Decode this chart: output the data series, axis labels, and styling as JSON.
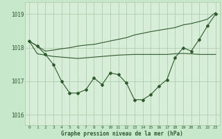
{
  "title": "Graphe pression niveau de la mer (hPa)",
  "bg_color": "#c8e8cc",
  "plot_bg_color": "#d8edd8",
  "grid_color": "#a8c8a8",
  "line_color": "#2d5a2d",
  "text_color": "#2d5a2d",
  "ylim": [
    1015.7,
    1019.35
  ],
  "xlim": [
    -0.5,
    23.5
  ],
  "yticks": [
    1016,
    1017,
    1018,
    1019
  ],
  "xticks": [
    0,
    1,
    2,
    3,
    4,
    5,
    6,
    7,
    8,
    9,
    10,
    11,
    12,
    13,
    14,
    15,
    16,
    17,
    18,
    19,
    20,
    21,
    22,
    23
  ],
  "series_jagged": [
    1018.2,
    1018.05,
    1017.8,
    1017.5,
    1017.0,
    1016.65,
    1016.65,
    1016.75,
    1017.1,
    1016.9,
    1017.25,
    1017.2,
    1016.95,
    1016.45,
    1016.45,
    1016.6,
    1016.85,
    1017.05,
    1017.7,
    1018.0,
    1017.9,
    1018.25,
    1018.65,
    1019.0
  ],
  "series_upper": [
    1018.2,
    1018.05,
    1017.9,
    1017.93,
    1017.97,
    1018.0,
    1018.05,
    1018.08,
    1018.1,
    1018.15,
    1018.2,
    1018.25,
    1018.3,
    1018.38,
    1018.43,
    1018.48,
    1018.52,
    1018.56,
    1018.6,
    1018.68,
    1018.72,
    1018.78,
    1018.85,
    1019.05
  ],
  "series_lower": [
    1018.2,
    1017.82,
    1017.78,
    1017.74,
    1017.72,
    1017.7,
    1017.68,
    1017.7,
    1017.72,
    1017.74,
    1017.76,
    1017.78,
    1017.79,
    1017.8,
    1017.8,
    1017.8,
    1017.8,
    1017.8,
    1017.82,
    1017.83,
    1017.82,
    1017.8,
    1017.8,
    1017.8
  ]
}
